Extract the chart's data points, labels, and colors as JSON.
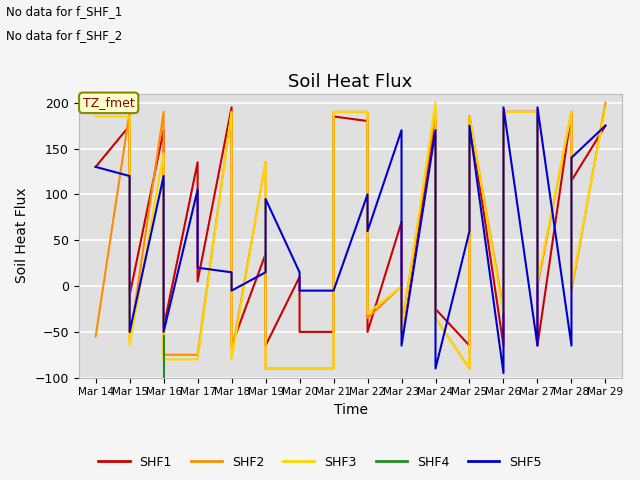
{
  "title": "Soil Heat Flux",
  "ylabel": "Soil Heat Flux",
  "xlabel": "Time",
  "ylim": [
    -100,
    210
  ],
  "yticks": [
    -100,
    -50,
    0,
    50,
    100,
    150,
    200
  ],
  "note_line1": "No data for f_SHF_1",
  "note_line2": "No data for f_SHF_2",
  "legend_label": "TZ_fmet",
  "bg_color": "#e0e0e0",
  "fig_bg_color": "#f5f5f5",
  "x_dates": [
    "Mar 14",
    "Mar 15",
    "Mar 16",
    "Mar 17",
    "Mar 18",
    "Mar 19",
    "Mar 20",
    "Mar 21",
    "Mar 22",
    "Mar 23",
    "Mar 24",
    "Mar 25",
    "Mar 26",
    "Mar 27",
    "Mar 28",
    "Mar 29"
  ],
  "series": {
    "SHF1": {
      "color": "#cc0000",
      "x": [
        0,
        1,
        1,
        2,
        2,
        3,
        3,
        4,
        4,
        5,
        5,
        6,
        6,
        7,
        7,
        8,
        8,
        9,
        9,
        10,
        10,
        11,
        11,
        12,
        12,
        13,
        13,
        14,
        14,
        15
      ],
      "y": [
        130,
        175,
        -10,
        170,
        -45,
        135,
        5,
        195,
        -65,
        35,
        -65,
        10,
        -50,
        -50,
        185,
        180,
        -50,
        70,
        -50,
        180,
        -25,
        -65,
        185,
        -65,
        190,
        190,
        -65,
        190,
        115,
        175
      ]
    },
    "SHF2": {
      "color": "#ff8c00",
      "x": [
        0,
        1,
        1,
        2,
        2,
        3,
        3,
        4,
        4,
        5,
        5,
        6,
        6,
        7,
        7,
        8,
        8,
        9,
        9,
        10,
        10,
        11,
        11,
        12,
        12,
        13,
        13,
        14,
        14,
        15
      ],
      "y": [
        -55,
        190,
        -60,
        190,
        -75,
        -75,
        -75,
        190,
        -75,
        135,
        -90,
        -90,
        -90,
        -90,
        190,
        190,
        -35,
        0,
        -45,
        190,
        -35,
        -90,
        185,
        -25,
        190,
        190,
        0,
        190,
        -5,
        200
      ]
    },
    "SHF3": {
      "color": "#ffd700",
      "x": [
        0,
        1,
        1,
        2,
        2,
        3,
        3,
        4,
        4,
        5,
        5,
        6,
        6,
        7,
        7,
        8,
        8,
        9,
        9,
        10,
        10,
        11,
        11,
        12,
        12,
        13,
        13,
        14,
        14,
        15
      ],
      "y": [
        185,
        185,
        -65,
        145,
        -80,
        -80,
        -80,
        190,
        -80,
        135,
        -90,
        -90,
        -90,
        -90,
        190,
        190,
        -30,
        0,
        -50,
        200,
        -35,
        -90,
        185,
        -30,
        190,
        190,
        5,
        190,
        0,
        195
      ]
    },
    "SHF4": {
      "color": "#228b22",
      "x": [
        2,
        2
      ],
      "y": [
        -55,
        -100
      ]
    },
    "SHF5": {
      "color": "#0000cd",
      "x": [
        0,
        1,
        1,
        2,
        2,
        3,
        3,
        4,
        4,
        5,
        5,
        6,
        6,
        7,
        7,
        8,
        8,
        9,
        9,
        10,
        10,
        11,
        11,
        12,
        12,
        13,
        13,
        14,
        14,
        15
      ],
      "y": [
        130,
        120,
        -50,
        120,
        -50,
        105,
        20,
        15,
        -5,
        15,
        95,
        15,
        -5,
        -5,
        -5,
        100,
        60,
        170,
        -65,
        170,
        -90,
        60,
        175,
        -95,
        195,
        -65,
        195,
        -65,
        140,
        175
      ]
    }
  }
}
